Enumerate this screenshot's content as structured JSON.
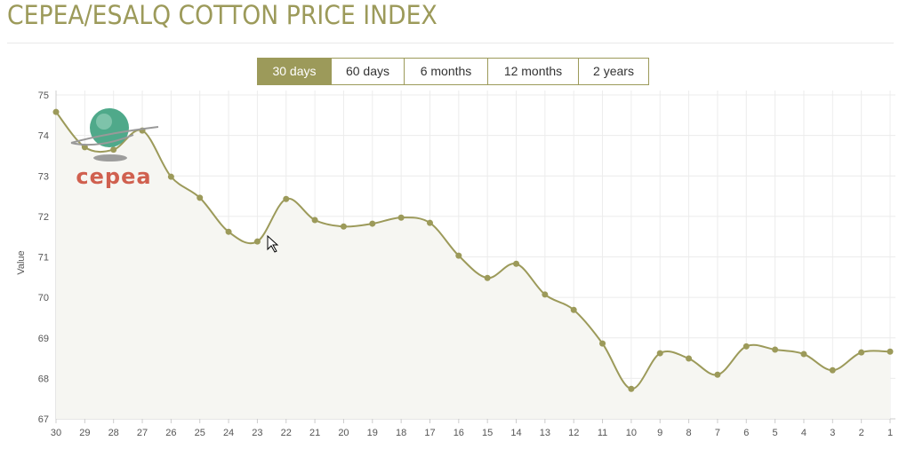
{
  "header": {
    "title": "CEPEA/ESALQ COTTON PRICE INDEX"
  },
  "tabs": [
    {
      "label": "30 days",
      "active": true
    },
    {
      "label": "60 days"
    },
    {
      "label": "6 months"
    },
    {
      "label": "12 months"
    },
    {
      "label": "2 years"
    }
  ],
  "logo": {
    "text": "cepea"
  },
  "colors": {
    "accent": "#9c9a5a",
    "fill": "#f6f6f2",
    "logo_red": "#d0604f"
  },
  "chart_data": {
    "type": "line",
    "title": "CEPEA/ESALQ COTTON PRICE INDEX",
    "xlabel": "",
    "ylabel": "Value",
    "ylim": [
      67,
      75
    ],
    "yticks": [
      "67",
      "68",
      "69",
      "70",
      "71",
      "72",
      "73",
      "74",
      "75"
    ],
    "categories": [
      "30",
      "29",
      "28",
      "27",
      "26",
      "25",
      "24",
      "23",
      "22",
      "21",
      "20",
      "19",
      "18",
      "17",
      "16",
      "15",
      "14",
      "13",
      "12",
      "11",
      "10",
      "9",
      "8",
      "7",
      "6",
      "5",
      "4",
      "3",
      "2",
      "1"
    ],
    "values": [
      74.58,
      73.71,
      73.65,
      74.12,
      72.98,
      72.46,
      71.62,
      71.38,
      72.43,
      71.91,
      71.75,
      71.82,
      71.97,
      71.84,
      71.03,
      70.48,
      70.83,
      70.07,
      69.69,
      68.86,
      67.74,
      68.62,
      68.49,
      68.09,
      68.79,
      68.71,
      68.6,
      68.2,
      68.64,
      68.66
    ],
    "grid": true,
    "area_fill": true
  }
}
